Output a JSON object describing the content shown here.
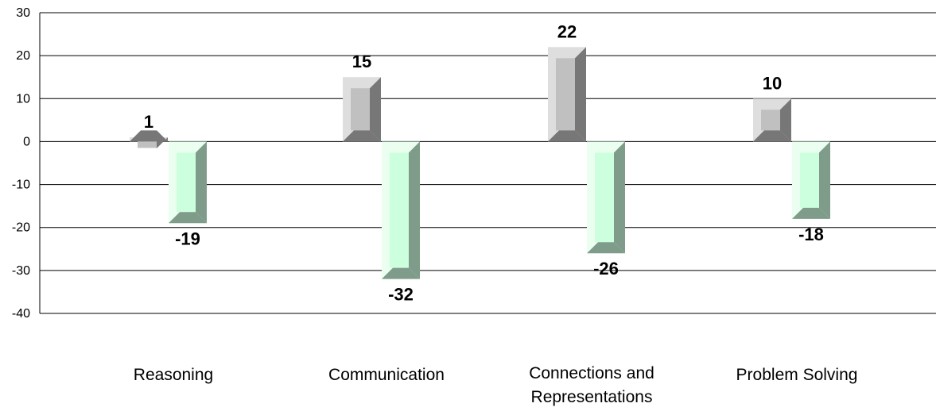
{
  "chart_data": {
    "type": "bar",
    "title": "",
    "xlabel": "",
    "ylabel": "",
    "ylim": [
      -40,
      30
    ],
    "yticks": [
      30,
      20,
      10,
      0,
      -10,
      -20,
      -30,
      -40
    ],
    "grid": true,
    "legend": "none",
    "categories": [
      [
        "Reasoning"
      ],
      [
        "Communication"
      ],
      [
        "Connections and",
        "Representations"
      ],
      [
        "Problem Solving"
      ]
    ],
    "series": [
      {
        "values": [
          1,
          15,
          22,
          10
        ],
        "color": "#c0c0c0"
      },
      {
        "values": [
          -19,
          -32,
          -26,
          -18
        ],
        "color": "#ccffdd"
      }
    ]
  }
}
